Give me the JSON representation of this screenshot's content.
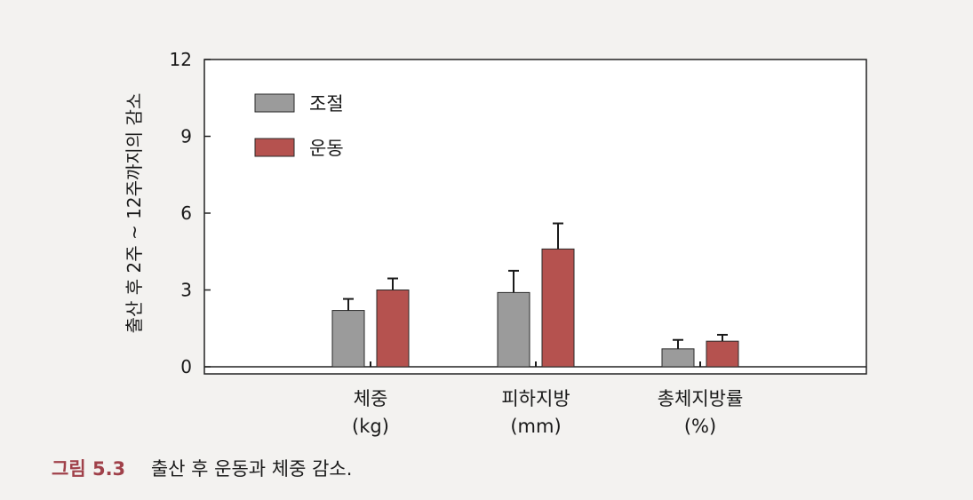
{
  "chart_data": {
    "type": "bar",
    "ylabel": "출산 후 2주 ~ 12주까지의 감소",
    "ylim": [
      0,
      12
    ],
    "yticks": [
      "0",
      "3",
      "6",
      "9",
      "12"
    ],
    "categories": [
      {
        "line1": "체중",
        "line2": "(kg)"
      },
      {
        "line1": "피하지방",
        "line2": "(mm)"
      },
      {
        "line1": "총체지방률",
        "line2": "(%)"
      }
    ],
    "series": [
      {
        "name": "조절",
        "color": "#9b9b9b",
        "values": [
          2.2,
          2.9,
          0.7
        ],
        "errors": [
          0.45,
          0.85,
          0.35
        ]
      },
      {
        "name": "운동",
        "color": "#b5524f",
        "values": [
          3.0,
          4.6,
          1.0
        ],
        "errors": [
          0.45,
          1.0,
          0.25
        ]
      }
    ],
    "legend_position": "top-left",
    "grid": false
  },
  "caption": {
    "figure_number": "그림 5.3",
    "text": "출산 후 운동과 체중 감소."
  }
}
